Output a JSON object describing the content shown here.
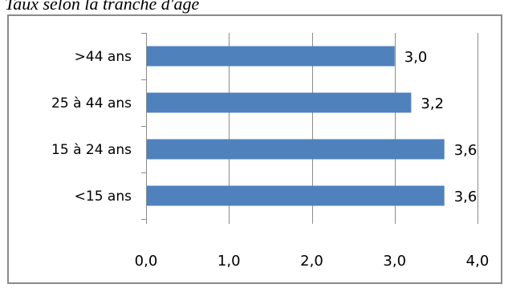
{
  "chart_data": {
    "type": "bar",
    "orientation": "horizontal",
    "title": "Taux selon la tranche d'âge",
    "categories": [
      ">44 ans",
      "25 à 44 ans",
      "15 à 24 ans",
      "<15 ans"
    ],
    "values": [
      3.0,
      3.2,
      3.6,
      3.6
    ],
    "data_labels": [
      "3,0",
      "3,2",
      "3,6",
      "3,6"
    ],
    "xlim": [
      0,
      4
    ],
    "x_ticks": [
      0,
      1,
      2,
      3,
      4
    ],
    "x_tick_labels": [
      "0,0",
      "1,0",
      "2,0",
      "3,0",
      "4,0"
    ],
    "xlabel": "",
    "ylabel": "",
    "grid": true,
    "legend": "none",
    "colors": {
      "bar": "#4F81BD",
      "grid": "#8c8c8c",
      "frame": "#8a8a8a"
    }
  }
}
